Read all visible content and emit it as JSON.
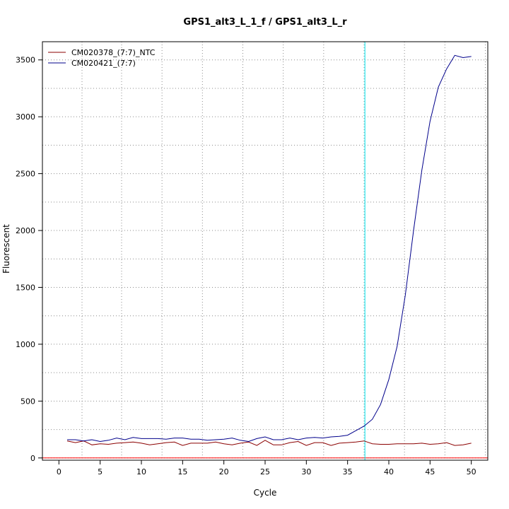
{
  "chart_data": {
    "type": "line",
    "title": "GPS1_alt3_L_1_f / GPS1_alt3_L_r",
    "xlabel": "Cycle",
    "ylabel": "Fluorescent",
    "xlim": [
      -2,
      52
    ],
    "ylim": [
      -20,
      3660
    ],
    "x_ticks": [
      0,
      5,
      10,
      15,
      20,
      25,
      30,
      35,
      40,
      45,
      50
    ],
    "y_ticks": [
      0,
      500,
      1000,
      1500,
      2000,
      2500,
      3000,
      3500
    ],
    "grid": true,
    "legend_position": "top-left",
    "x": [
      1,
      2,
      3,
      4,
      5,
      6,
      7,
      8,
      9,
      10,
      11,
      12,
      13,
      14,
      15,
      16,
      17,
      18,
      19,
      20,
      21,
      22,
      23,
      24,
      25,
      26,
      27,
      28,
      29,
      30,
      31,
      32,
      33,
      34,
      35,
      36,
      37,
      38,
      39,
      40,
      41,
      42,
      43,
      44,
      45,
      46,
      47,
      48,
      49,
      50
    ],
    "series": [
      {
        "name": "CM020378_(7:7)_NTC",
        "color": "#8b0000",
        "values": [
          150,
          135,
          150,
          115,
          125,
          120,
          130,
          135,
          140,
          130,
          115,
          125,
          135,
          140,
          110,
          130,
          130,
          130,
          140,
          125,
          115,
          130,
          140,
          110,
          155,
          115,
          115,
          135,
          145,
          110,
          135,
          135,
          110,
          130,
          135,
          140,
          150,
          125,
          120,
          120,
          125,
          125,
          125,
          130,
          120,
          125,
          135,
          110,
          115,
          130
        ]
      },
      {
        "name": "CM020421_(7:7)",
        "color": "#00008b",
        "values": [
          160,
          160,
          150,
          160,
          145,
          155,
          175,
          160,
          180,
          170,
          170,
          170,
          165,
          175,
          175,
          165,
          165,
          155,
          160,
          165,
          175,
          155,
          145,
          170,
          185,
          160,
          160,
          175,
          160,
          175,
          180,
          175,
          185,
          190,
          200,
          240,
          280,
          340,
          470,
          690,
          980,
          1430,
          2000,
          2530,
          2960,
          3260,
          3420,
          3540,
          3520,
          3530
        ]
      }
    ],
    "reference_lines": {
      "threshold_y": 0,
      "threshold_color": "#ff0000",
      "cycle_line_x": 37.1,
      "cycle_line_color": "#00e5ee"
    }
  }
}
